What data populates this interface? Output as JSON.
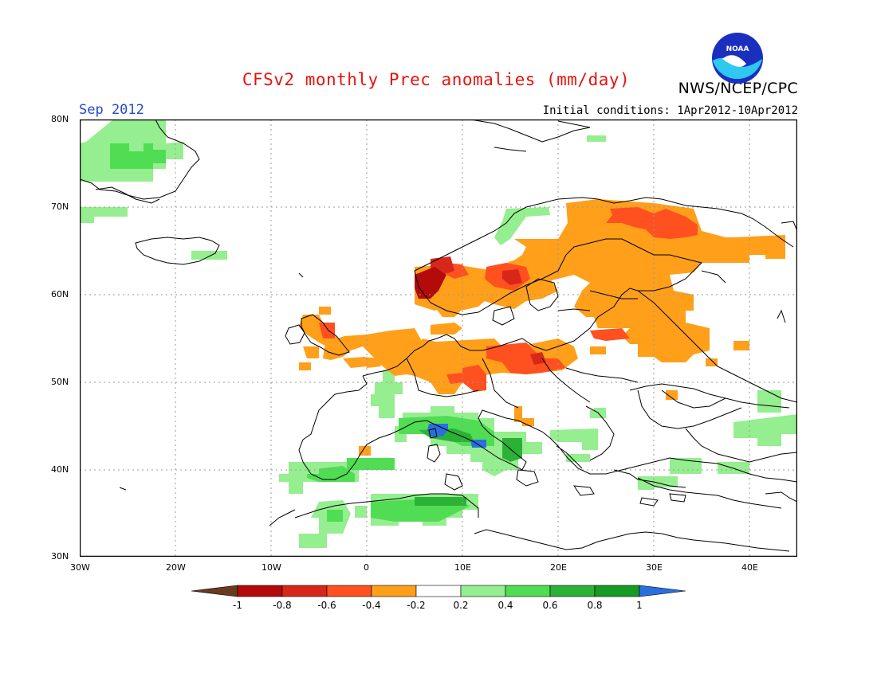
{
  "header": {
    "title": "CFSv2 monthly Prec anomalies (mm/day)",
    "agency": "NWS/NCEP/CPC",
    "month": "Sep 2012",
    "initial_conditions": "Initial conditions: 1Apr2012-10Apr2012",
    "logo_text": "NOAA"
  },
  "map": {
    "lon_range": [
      -30,
      45
    ],
    "lat_range": [
      30,
      80
    ],
    "grid": true,
    "lat_ticks": [
      {
        "value": 80,
        "label": "80N"
      },
      {
        "value": 70,
        "label": "70N"
      },
      {
        "value": 60,
        "label": "60N"
      },
      {
        "value": 50,
        "label": "50N"
      },
      {
        "value": 40,
        "label": "40N"
      },
      {
        "value": 30,
        "label": "30N"
      }
    ],
    "lon_ticks": [
      {
        "value": -30,
        "label": "30W"
      },
      {
        "value": -20,
        "label": "20W"
      },
      {
        "value": -10,
        "label": "10W"
      },
      {
        "value": 0,
        "label": "0"
      },
      {
        "value": 10,
        "label": "10E"
      },
      {
        "value": 20,
        "label": "20E"
      },
      {
        "value": 30,
        "label": "30E"
      },
      {
        "value": 40,
        "label": "40E"
      }
    ]
  },
  "legend": {
    "labels": [
      "-1",
      "-0.8",
      "-0.6",
      "-0.4",
      "-0.2",
      "0.2",
      "0.4",
      "0.6",
      "0.8",
      "1"
    ],
    "colors": [
      "#6b3a1d",
      "#b30a0a",
      "#d8271a",
      "#ff5020",
      "#ff9f1a",
      "#ffffff",
      "#95ee8f",
      "#50dd53",
      "#2bb236",
      "#169b24",
      "#2a6fe0"
    ]
  }
}
